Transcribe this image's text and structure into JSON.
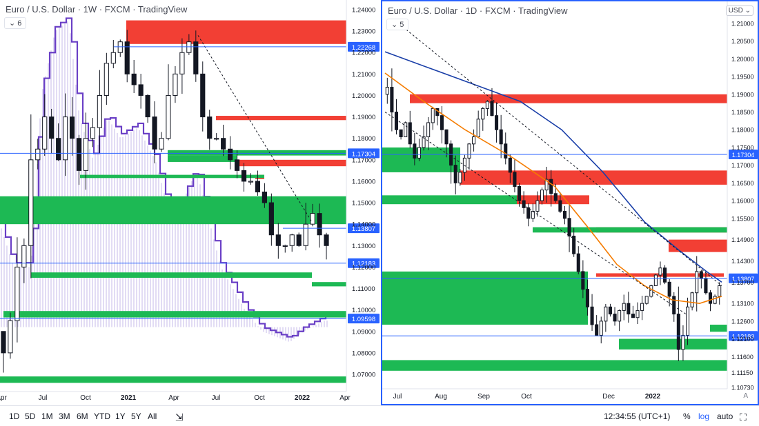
{
  "left": {
    "title": "Euro / U.S. Dollar · 1W · FXCM · TradingView",
    "legend_count": "6",
    "ylim": [
      1.062,
      1.244
    ],
    "price_ticks": [
      "1.24000",
      "1.23000",
      "1.22000",
      "1.21000",
      "1.20000",
      "1.19000",
      "1.18000",
      "1.17000",
      "1.16000",
      "1.15000",
      "1.14000",
      "1.13000",
      "1.12000",
      "1.11000",
      "1.10000",
      "1.09000",
      "1.08000",
      "1.07000"
    ],
    "time_labels": [
      "Apr",
      "Jul",
      "Oct",
      "2021",
      "Apr",
      "Jul",
      "Oct",
      "2022",
      "Apr"
    ],
    "price_tags": [
      "1.22268",
      "1.17304",
      "1.13807",
      "1.12183",
      "1.09598"
    ]
  },
  "right": {
    "title": "Euro / U.S. Dollar · 1D · FXCM · TradingView",
    "legend_count": "5",
    "currency": "USD",
    "auto_label": "A",
    "price_ticks": [
      "1.21000",
      "1.20500",
      "1.20000",
      "1.19500",
      "1.19000",
      "1.18500",
      "1.18000",
      "1.17500",
      "1.17000",
      "1.16500",
      "1.16000",
      "1.15500",
      "1.14900",
      "1.14300",
      "1.13700",
      "1.13100",
      "1.12600",
      "1.12100",
      "1.11600",
      "1.11150",
      "1.10730"
    ],
    "time_labels": [
      "Jul",
      "Aug",
      "Sep",
      "Oct",
      "Dec",
      "2022"
    ],
    "price_tags": [
      "1.17304",
      "1.13807",
      "1.12183"
    ]
  },
  "toolbar": {
    "timeframes": [
      "1D",
      "5D",
      "1M",
      "3M",
      "6M",
      "YTD",
      "1Y",
      "5Y",
      "All"
    ],
    "clock": "12:34:55 (UTC+1)",
    "percent": "%",
    "log": "log",
    "auto": "auto"
  },
  "colors": {
    "supply": "#f23f34",
    "demand": "#1db954",
    "level_line": "#2962ff",
    "candle": "#131722",
    "volume_profile": "#6a3fc6",
    "ma_fast": "#f57c00",
    "ma_slow": "#1a3fa8"
  },
  "chart_data": [
    {
      "type": "candlestick",
      "timeframe": "1W",
      "symbol": "EURUSD",
      "exchange": "FXCM",
      "levels": [
        1.22268,
        1.17304,
        1.13807,
        1.12183,
        1.09598
      ],
      "supply_zones": [
        [
          1.224,
          1.235
        ],
        [
          1.1885,
          1.1905
        ],
        [
          1.167,
          1.17
        ],
        [
          1.161,
          1.163
        ],
        [
          1.1478,
          1.1495
        ]
      ],
      "demand_zones": [
        [
          1.172,
          1.1745
        ],
        [
          1.169,
          1.172
        ],
        [
          1.1615,
          1.163
        ],
        [
          1.14,
          1.153
        ],
        [
          1.115,
          1.1175
        ],
        [
          1.111,
          1.113
        ],
        [
          1.0965,
          1.0995
        ],
        [
          1.066,
          1.069
        ]
      ]
    },
    {
      "type": "candlestick",
      "timeframe": "1D",
      "symbol": "EURUSD",
      "exchange": "FXCM",
      "levels": [
        1.17304,
        1.13807,
        1.12183
      ],
      "supply_zones": [
        [
          1.1875,
          1.19
        ],
        [
          1.1645,
          1.1685
        ],
        [
          1.159,
          1.1615
        ],
        [
          1.151,
          1.1525
        ],
        [
          1.1455,
          1.149
        ],
        [
          1.1385,
          1.1395
        ]
      ],
      "demand_zones": [
        [
          1.168,
          1.175
        ],
        [
          1.159,
          1.1615
        ],
        [
          1.151,
          1.1525
        ],
        [
          1.125,
          1.14
        ],
        [
          1.123,
          1.125
        ],
        [
          1.118,
          1.121
        ],
        [
          1.112,
          1.115
        ]
      ],
      "moving_averages": [
        "orange",
        "navy"
      ]
    }
  ]
}
